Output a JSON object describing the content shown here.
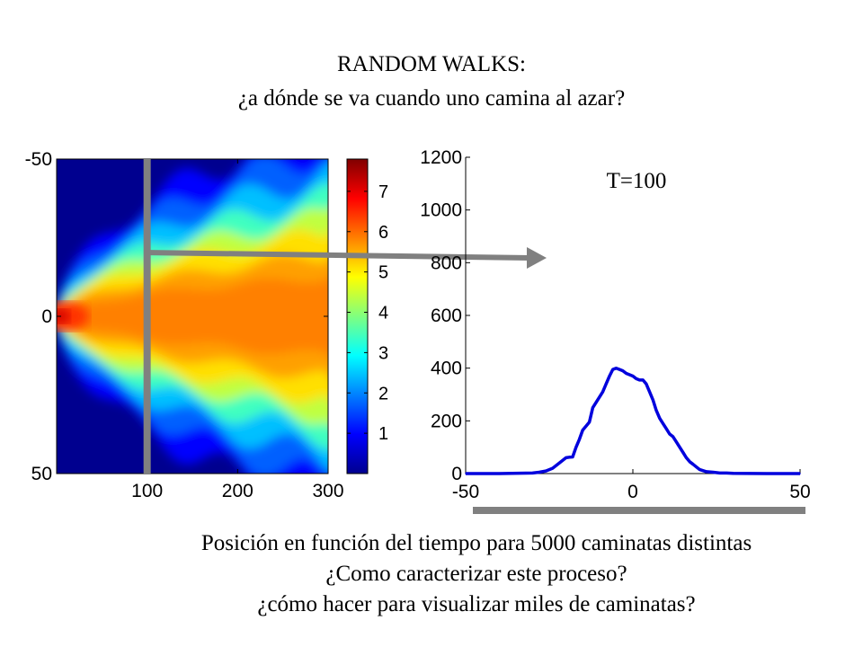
{
  "header": {
    "title": "RANDOM WALKS:",
    "subtitle": "¿a dónde se va cuando uno camina al azar?"
  },
  "caption": {
    "line1": "Posición en función del tiempo para 5000 caminatas distintas",
    "line2": "¿Como caracterizar este proceso?",
    "line3": "¿cómo hacer para visualizar  miles de caminatas?"
  },
  "colors": {
    "line": "#0000dd",
    "marker": "#808080"
  },
  "chart_data": [
    {
      "type": "heatmap",
      "title": "",
      "xlabel": "",
      "ylabel": "",
      "xlim": [
        0,
        300
      ],
      "ylim": [
        -50,
        50
      ],
      "x_ticks": [
        100,
        200,
        300
      ],
      "y_ticks": [
        -50,
        0,
        50
      ],
      "colorscale": "jet",
      "colorbar": {
        "range": [
          0,
          7.8
        ],
        "ticks": [
          1,
          2,
          3,
          4,
          5,
          6,
          7
        ]
      },
      "highlight_time": 100
    },
    {
      "type": "line",
      "title": "",
      "annotation": "T=100",
      "xlabel": "",
      "ylabel": "",
      "xlim": [
        -50,
        50
      ],
      "ylim": [
        0,
        1200
      ],
      "x_ticks": [
        -50,
        0,
        50
      ],
      "y_ticks": [
        0,
        200,
        400,
        600,
        800,
        1000,
        1200
      ],
      "series": [
        {
          "x": [
            -50,
            -40,
            -30,
            -28,
            -26,
            -24,
            -22,
            -20,
            -19,
            -18,
            -17,
            -16,
            -15,
            -14,
            -13,
            -12,
            -11,
            -10,
            -9,
            -8,
            -7,
            -6,
            -5,
            -4,
            -3,
            -2,
            -1,
            0,
            1,
            2,
            3,
            4,
            5,
            6,
            7,
            8,
            9,
            10,
            11,
            12,
            13,
            14,
            15,
            16,
            17,
            18,
            19,
            20,
            22,
            24,
            26,
            28,
            30,
            40,
            50
          ],
          "y": [
            0,
            0,
            2,
            5,
            10,
            20,
            40,
            60,
            62,
            63,
            100,
            130,
            165,
            180,
            195,
            250,
            270,
            290,
            310,
            340,
            370,
            395,
            400,
            395,
            390,
            380,
            375,
            370,
            360,
            355,
            355,
            340,
            310,
            280,
            240,
            210,
            190,
            170,
            150,
            140,
            120,
            100,
            80,
            60,
            45,
            35,
            25,
            15,
            7,
            5,
            2,
            2,
            1,
            0,
            0
          ]
        }
      ]
    }
  ]
}
